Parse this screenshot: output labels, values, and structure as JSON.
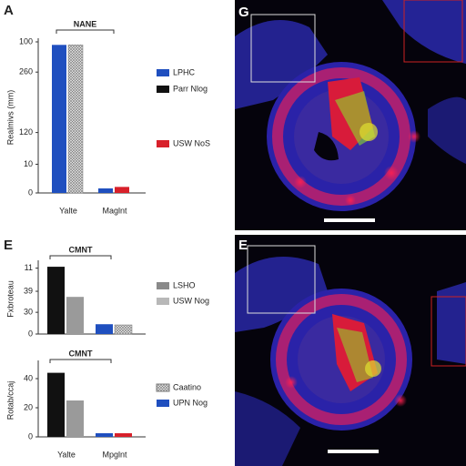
{
  "panels": {
    "a": "A",
    "e": "E",
    "g": "G",
    "e2": "E"
  },
  "chart_data": [
    {
      "type": "bar",
      "title": "NANE",
      "ylabel": "Realmivs (mm)",
      "categories": [
        "Yalte",
        "Maglnt"
      ],
      "series": [
        {
          "color": "#1f4fbf",
          "values": [
            98,
            3
          ]
        },
        {
          "color": "hatch",
          "values": [
            98,
            null
          ]
        },
        {
          "color": "#d8202a",
          "values": [
            null,
            4
          ]
        }
      ],
      "legend": [
        {
          "label": "LPHC",
          "color": "#1f4fbf"
        },
        {
          "label": "Parr Nlog",
          "color": "#111111"
        },
        {
          "label": "USW NoS",
          "color": "#d8202a"
        }
      ],
      "ylim": [
        0,
        100
      ],
      "yticks": [
        0,
        {
          "value": 19,
          "label": "10"
        },
        {
          "value": 40,
          "label": "120"
        },
        {
          "value": 80,
          "label": "260"
        },
        100
      ]
    },
    {
      "type": "bar",
      "title": "CMNT",
      "ylabel": "Fxbroteau",
      "categories": [
        null,
        null
      ],
      "series": [
        {
          "color": "#111111",
          "values": [
            96,
            null
          ]
        },
        {
          "color": "#9a9a9a",
          "values": [
            53,
            null
          ]
        },
        {
          "color": "#1f4fbf",
          "values": [
            null,
            14
          ]
        },
        {
          "color": "hatch",
          "values": [
            null,
            13
          ]
        }
      ],
      "legend": [
        {
          "label": "LSHO",
          "color": "#8a8a8a"
        },
        {
          "label": "USW Nog",
          "color": "#b8b8b8"
        }
      ],
      "ylim": [
        0,
        100
      ],
      "yticks": [
        0,
        {
          "value": 31,
          "label": "30"
        },
        {
          "value": 61,
          "label": "39"
        },
        {
          "value": 94,
          "label": "11"
        }
      ]
    },
    {
      "type": "bar",
      "title": "CMNT",
      "ylabel": "Rotab/ccaj",
      "categories": [
        "Yalte",
        "Mpglnt"
      ],
      "series": [
        {
          "color": "#111111",
          "values": [
            44,
            null
          ]
        },
        {
          "color": "#9a9a9a",
          "values": [
            25,
            null
          ]
        },
        {
          "color": "#1f4fbf",
          "values": [
            null,
            2.5
          ]
        },
        {
          "color": "#d8202a",
          "values": [
            null,
            2.5
          ]
        }
      ],
      "legend": [
        {
          "label": "Caatino",
          "color": "hatch"
        },
        {
          "label": "UPN Nog",
          "color": "#1f4fbf"
        }
      ],
      "ylim": [
        0,
        50
      ],
      "yticks": [
        0,
        20,
        40
      ]
    }
  ]
}
